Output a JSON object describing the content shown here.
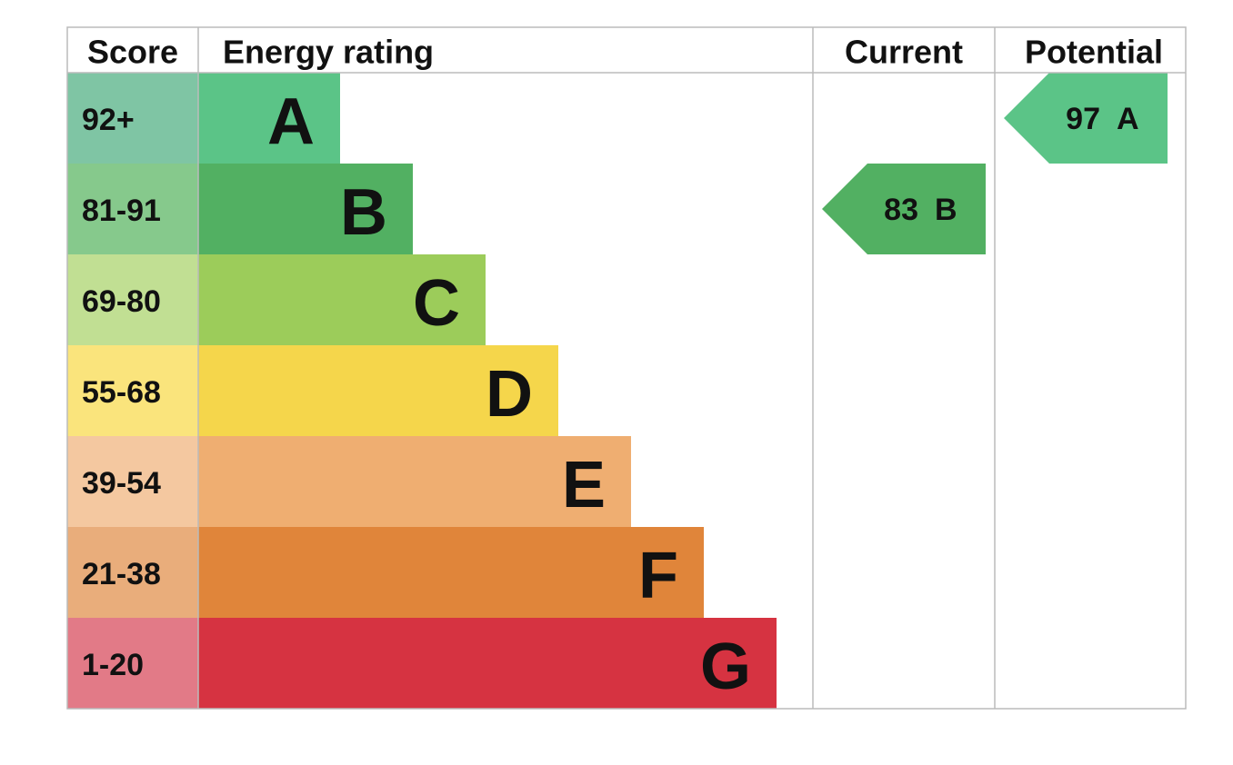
{
  "headers": {
    "score": "Score",
    "rating": "Energy rating",
    "current": "Current",
    "potential": "Potential"
  },
  "bands": [
    {
      "score": "92+",
      "letter": "A",
      "color": "#5bc487",
      "score_color": "#7fc5a4"
    },
    {
      "score": "81-91",
      "letter": "B",
      "color": "#52b062",
      "score_color": "#86c98c"
    },
    {
      "score": "69-80",
      "letter": "C",
      "color": "#9ccc5a",
      "score_color": "#c1df93"
    },
    {
      "score": "55-68",
      "letter": "D",
      "color": "#f5d64b",
      "score_color": "#fae47c"
    },
    {
      "score": "39-54",
      "letter": "E",
      "color": "#efae71",
      "score_color": "#f4c8a0"
    },
    {
      "score": "21-38",
      "letter": "F",
      "color": "#e0853a",
      "score_color": "#e9ad7b"
    },
    {
      "score": "1-20",
      "letter": "G",
      "color": "#d63341",
      "score_color": "#e27a87"
    }
  ],
  "current": {
    "value": "83",
    "letter": "B"
  },
  "potential": {
    "value": "97",
    "letter": "A"
  }
}
